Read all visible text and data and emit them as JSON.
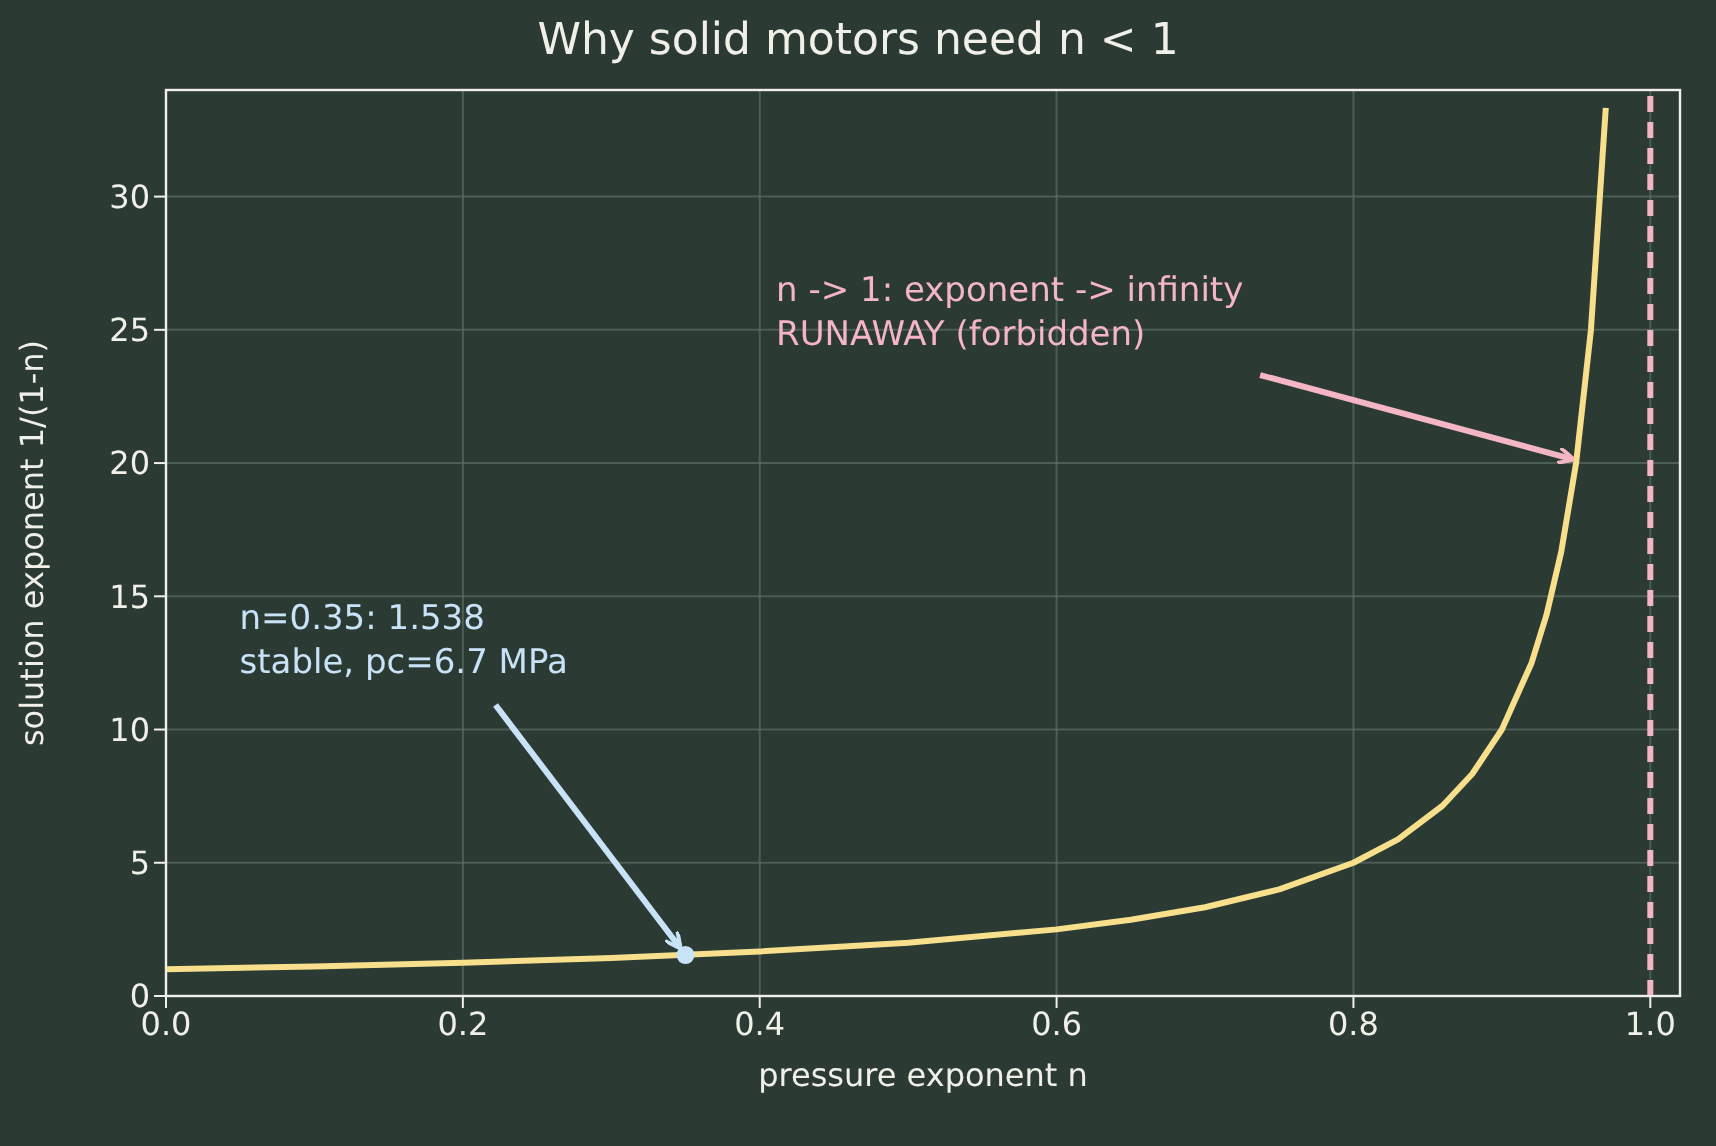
{
  "chart_data": {
    "type": "line",
    "title": "Why solid motors need n < 1",
    "xlabel": "pressure exponent  n",
    "ylabel": "solution exponent  1/(1-n)",
    "xlim": [
      0,
      1.02
    ],
    "ylim": [
      0,
      34
    ],
    "xticks": [
      {
        "value": 0,
        "label": "0.0"
      },
      {
        "value": 0.2,
        "label": "0.2"
      },
      {
        "value": 0.4,
        "label": "0.4"
      },
      {
        "value": 0.6,
        "label": "0.6"
      },
      {
        "value": 0.8,
        "label": "0.8"
      },
      {
        "value": 1,
        "label": "1.0"
      }
    ],
    "yticks": [
      0,
      5,
      10,
      15,
      20,
      25,
      30
    ],
    "grid": true,
    "legend": false,
    "series": [
      {
        "color": "#f7df8c",
        "marker": "none",
        "x": [
          0,
          0.1,
          0.2,
          0.3,
          0.4,
          0.5,
          0.6,
          0.65,
          0.7,
          0.75,
          0.8,
          0.83,
          0.86,
          0.88,
          0.9,
          0.92,
          0.93,
          0.94,
          0.95,
          0.96,
          0.97
        ],
        "values": [
          1,
          1.11,
          1.25,
          1.43,
          1.67,
          2,
          2.5,
          2.86,
          3.33,
          4,
          5,
          5.88,
          7.14,
          8.33,
          10,
          12.5,
          14.29,
          16.67,
          20,
          25,
          33.33
        ]
      },
      {
        "type": "scatter",
        "color": "#c8e3f8",
        "marker": "circle",
        "x": [
          0.35
        ],
        "values": [
          1.538
        ]
      }
    ],
    "ref_lines": [
      {
        "axis": "x",
        "value": 1,
        "color": "#f4b6c4",
        "line_style": "dashed"
      }
    ],
    "annotations": [
      {
        "text": "n=0.35: 1.538\nstable, pc=6.7 MPa",
        "x": 0.35,
        "y": 1.538
      },
      {
        "text": "n -> 1: exponent -> infinity\nRUNAWAY (forbidden)",
        "x": 0.95,
        "y": 20
      }
    ]
  }
}
